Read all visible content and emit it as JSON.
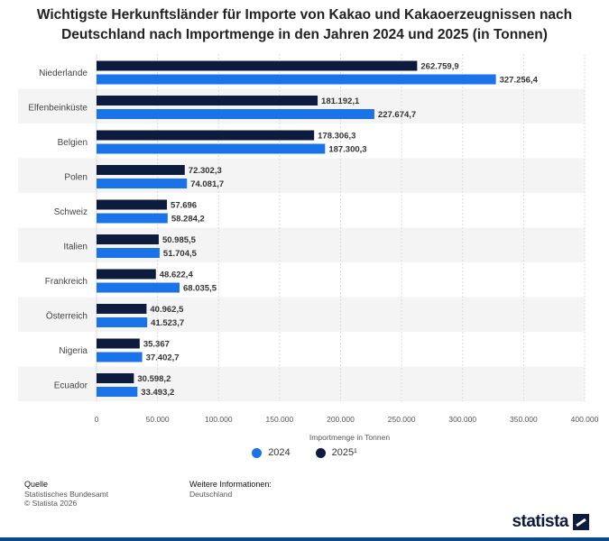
{
  "title": "Wichtigste Herkunftsländer für Importe von Kakao und Kakaoerzeugnissen nach Deutschland nach Importmenge in den Jahren 2024 und 2025 (in Tonnen)",
  "colors": {
    "series_2024": "#1a73e8",
    "series_2025": "#0d1b3e",
    "band": "#f4f4f4"
  },
  "chart_data": {
    "type": "bar",
    "orientation": "horizontal",
    "categories": [
      "Niederlande",
      "Elfenbeinküste",
      "Belgien",
      "Polen",
      "Schweiz",
      "Italien",
      "Frankreich",
      "Österreich",
      "Nigeria",
      "Ecuador"
    ],
    "series": [
      {
        "name": "2025¹",
        "values": [
          262759.9,
          181192.1,
          178306.3,
          72302.3,
          57696,
          50985.5,
          48622.4,
          40962.5,
          35367,
          30598.2
        ],
        "labels": [
          "262.759,9",
          "181.192,1",
          "178.306,3",
          "72.302,3",
          "57.696",
          "50.985,5",
          "48.622,4",
          "40.962,5",
          "35.367",
          "30.598,2"
        ]
      },
      {
        "name": "2024",
        "values": [
          327256.4,
          227674.7,
          187300.3,
          74081.7,
          58284.2,
          51704.5,
          68035.5,
          41523.7,
          37402.7,
          33493.2
        ],
        "labels": [
          "327.256,4",
          "227.674,7",
          "187.300,3",
          "74.081,7",
          "58.284,2",
          "51.704,5",
          "68.035,5",
          "41.523,7",
          "37.402,7",
          "33.493,2"
        ]
      }
    ],
    "xlabel": "Importmenge in Tonnen",
    "xlim": [
      0,
      400000
    ],
    "xticks": [
      0,
      50000,
      100000,
      150000,
      200000,
      250000,
      300000,
      350000,
      400000
    ],
    "xtick_labels": [
      "0",
      "50.000",
      "100.000",
      "150.000",
      "200.000",
      "250.000",
      "300.000",
      "350.000",
      "400.000"
    ],
    "grid": true,
    "legend_position": "bottom"
  },
  "legend": [
    {
      "label": "2024",
      "series": "2024"
    },
    {
      "label": "2025¹",
      "series": "2025"
    }
  ],
  "footer": {
    "source_heading": "Quelle",
    "source_lines": [
      "Statistisches Bundesamt",
      "© Statista 2026"
    ],
    "info_heading": "Weitere Informationen:",
    "info_lines": [
      "Deutschland"
    ]
  },
  "brand": "statista"
}
